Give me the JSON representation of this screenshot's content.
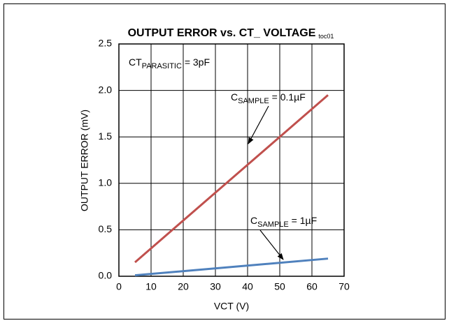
{
  "chart_data": {
    "type": "line",
    "title": "OUTPUT ERROR vs. CT_ VOLTAGE",
    "title_tag": "toc01",
    "x_label": "VCT (V)",
    "y_label": "OUTPUT ERROR (mV)",
    "x": [
      5,
      65
    ],
    "series": [
      {
        "name": "C_SAMPLE = 0.1µF",
        "color": "#c0504d",
        "values": [
          0.15,
          1.95
        ]
      },
      {
        "name": "C_SAMPLE = 1µF",
        "color": "#4f81bd",
        "values": [
          0.01,
          0.19
        ]
      }
    ],
    "annotations": [
      {
        "text": "CT",
        "sub": "PARASITIC",
        "suffix": " = 3pF"
      },
      {
        "text": "C",
        "sub": "SAMPLE",
        "suffix": " = 0.1µF"
      },
      {
        "text": "C",
        "sub": "SAMPLE",
        "suffix": " = 1µF"
      }
    ],
    "xlim": [
      0,
      70
    ],
    "xticks": [
      0,
      10,
      20,
      30,
      40,
      50,
      60,
      70
    ],
    "ylim": [
      0,
      2.5
    ],
    "yticks": [
      {
        "value": 0,
        "label": "0.0"
      },
      0.5,
      {
        "value": 1,
        "label": "1.0"
      },
      1.5,
      {
        "value": 2,
        "label": "2.0"
      },
      2.5
    ],
    "grid": true
  }
}
